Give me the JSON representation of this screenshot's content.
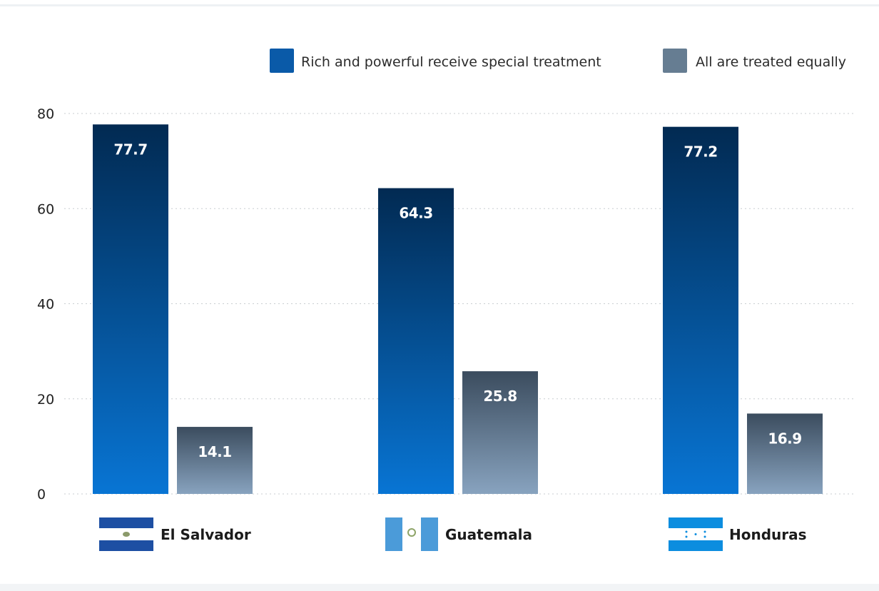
{
  "chart_data": {
    "type": "bar",
    "categories": [
      "El Salvador",
      "Guatemala",
      "Honduras"
    ],
    "series": [
      {
        "name": "Rich and powerful receive special treatment",
        "values": [
          77.7,
          64.3,
          77.2
        ]
      },
      {
        "name": "All are treated equally",
        "values": [
          14.1,
          25.8,
          16.9
        ]
      }
    ],
    "value_labels": [
      [
        "77.7",
        "64.3",
        "77.2"
      ],
      [
        "14.1",
        "25.8",
        "16.9"
      ]
    ],
    "yticks": [
      "0",
      "20",
      "40",
      "60",
      "80"
    ],
    "ylim": [
      0,
      80
    ],
    "grid": true,
    "legend": "top-right",
    "colors": {
      "series1_top": "#022a52",
      "series1_bottom": "#0875d4",
      "series2_top": "#3b4c5e",
      "series2_bottom": "#88a3bf",
      "legend1": "#0a5aa8",
      "legend2": "#667d92"
    },
    "flags": [
      {
        "country": "El Salvador",
        "icon": "el-salvador-flag-icon",
        "stripe": "#1d4fa3",
        "center": "#ffffff"
      },
      {
        "country": "Guatemala",
        "icon": "guatemala-flag-icon",
        "stripe": "#4b9bd9",
        "center": "#ffffff"
      },
      {
        "country": "Honduras",
        "icon": "honduras-flag-icon",
        "stripe": "#0c8ddf",
        "center": "#ffffff"
      }
    ]
  }
}
